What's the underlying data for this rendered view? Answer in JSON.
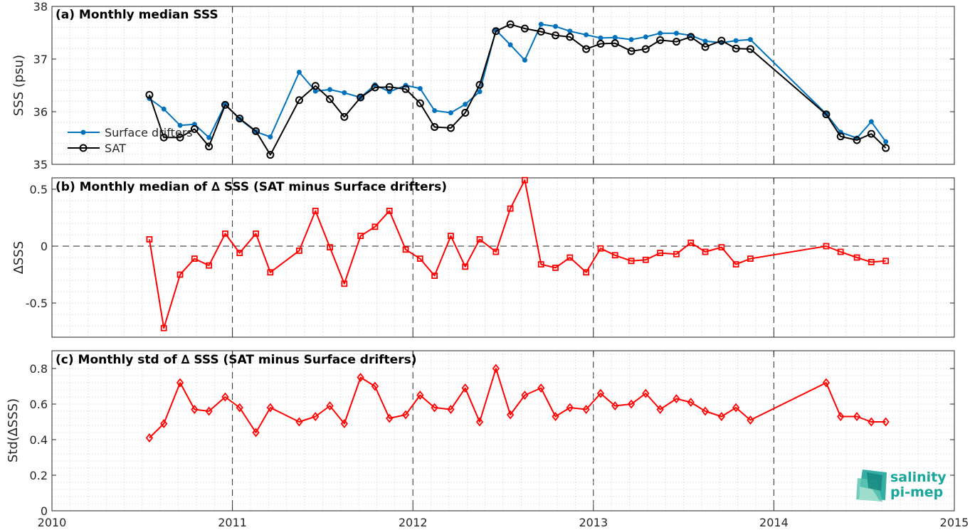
{
  "colors": {
    "drifters": "#0072bd",
    "sat": "#000000",
    "delta": "#ff0000",
    "logo": "#18a79a"
  },
  "logo": {
    "line1": "salinity",
    "line2": "pi-mep"
  },
  "chart_data": [
    {
      "type": "line",
      "title": "(a) Monthly median SSS",
      "ylabel": "SSS (psu)",
      "xlim": [
        2010,
        2015
      ],
      "ylim": [
        35,
        38
      ],
      "yticks": [
        35,
        36,
        37,
        38
      ],
      "ytick_labels": [
        "35",
        "36",
        "37",
        "38"
      ],
      "grid": true,
      "legend_position": "left",
      "series": [
        {
          "name": "Surface drifters",
          "marker": "dot",
          "color": "#0072bd",
          "x": [
            2010.54,
            2010.62,
            2010.71,
            2010.79,
            2010.87,
            2010.96,
            2011.04,
            2011.13,
            2011.21,
            2011.37,
            2011.46,
            2011.54,
            2011.62,
            2011.71,
            2011.79,
            2011.87,
            2011.96,
            2012.04,
            2012.12,
            2012.21,
            2012.29,
            2012.37,
            2012.46,
            2012.54,
            2012.62,
            2012.71,
            2012.79,
            2012.87,
            2012.96,
            2013.04,
            2013.12,
            2013.21,
            2013.29,
            2013.37,
            2013.46,
            2013.54,
            2013.62,
            2013.71,
            2013.79,
            2013.87,
            2014.29,
            2014.37,
            2014.46,
            2014.54,
            2014.62
          ],
          "y": [
            36.25,
            36.05,
            35.74,
            35.76,
            35.51,
            36.14,
            35.86,
            35.62,
            35.52,
            36.75,
            36.39,
            36.42,
            36.36,
            36.27,
            36.51,
            36.38,
            36.5,
            36.44,
            36.02,
            35.98,
            36.14,
            36.38,
            37.55,
            37.27,
            36.98,
            37.66,
            37.62,
            37.53,
            37.46,
            37.4,
            37.41,
            37.37,
            37.42,
            37.49,
            37.49,
            37.45,
            37.34,
            37.31,
            37.35,
            37.37,
            35.96,
            35.61,
            35.5,
            35.81,
            35.43
          ]
        },
        {
          "name": "SAT",
          "marker": "circle",
          "color": "#000000",
          "x": [
            2010.54,
            2010.62,
            2010.71,
            2010.79,
            2010.87,
            2010.96,
            2011.04,
            2011.13,
            2011.21,
            2011.37,
            2011.46,
            2011.54,
            2011.62,
            2011.71,
            2011.79,
            2011.87,
            2011.96,
            2012.04,
            2012.12,
            2012.21,
            2012.29,
            2012.37,
            2012.46,
            2012.54,
            2012.62,
            2012.71,
            2012.79,
            2012.87,
            2012.96,
            2013.04,
            2013.12,
            2013.21,
            2013.29,
            2013.37,
            2013.46,
            2013.54,
            2013.62,
            2013.71,
            2013.79,
            2013.87,
            2014.29,
            2014.37,
            2014.46,
            2014.54,
            2014.62
          ],
          "y": [
            36.32,
            35.51,
            35.51,
            35.67,
            35.34,
            36.13,
            35.87,
            35.63,
            35.18,
            36.22,
            36.49,
            36.24,
            35.9,
            36.27,
            36.46,
            36.47,
            36.43,
            36.16,
            35.71,
            35.69,
            35.98,
            36.51,
            37.53,
            37.66,
            37.58,
            37.52,
            37.45,
            37.42,
            37.19,
            37.29,
            37.3,
            37.15,
            37.19,
            37.36,
            37.33,
            37.42,
            37.23,
            37.35,
            37.2,
            37.19,
            35.95,
            35.53,
            35.46,
            35.58,
            35.31
          ]
        }
      ]
    },
    {
      "type": "line",
      "title": "(b) Monthly median of ∆ SSS (SAT minus Surface drifters)",
      "ylabel": "∆SSS",
      "xlim": [
        2010,
        2015
      ],
      "ylim": [
        -0.8,
        0.6
      ],
      "yticks": [
        -0.5,
        0,
        0.5
      ],
      "ytick_labels": [
        "-0.5",
        "0",
        "0.5"
      ],
      "grid": true,
      "reference_line": 0,
      "series": [
        {
          "marker": "square",
          "color": "#ff0000",
          "x": [
            2010.54,
            2010.62,
            2010.71,
            2010.79,
            2010.87,
            2010.96,
            2011.04,
            2011.13,
            2011.21,
            2011.37,
            2011.46,
            2011.54,
            2011.62,
            2011.71,
            2011.79,
            2011.87,
            2011.96,
            2012.04,
            2012.12,
            2012.21,
            2012.29,
            2012.37,
            2012.46,
            2012.54,
            2012.62,
            2012.71,
            2012.79,
            2012.87,
            2012.96,
            2013.04,
            2013.12,
            2013.21,
            2013.29,
            2013.37,
            2013.46,
            2013.54,
            2013.62,
            2013.71,
            2013.79,
            2013.87,
            2014.29,
            2014.37,
            2014.46,
            2014.54,
            2014.62
          ],
          "y": [
            0.06,
            -0.72,
            -0.25,
            -0.11,
            -0.17,
            0.11,
            -0.06,
            0.11,
            -0.23,
            -0.04,
            0.31,
            -0.01,
            -0.33,
            0.09,
            0.17,
            0.31,
            -0.03,
            -0.11,
            -0.26,
            0.09,
            -0.18,
            0.06,
            -0.05,
            0.33,
            0.58,
            -0.16,
            -0.19,
            -0.1,
            -0.23,
            -0.02,
            -0.08,
            -0.13,
            -0.12,
            -0.06,
            -0.07,
            0.03,
            -0.05,
            -0.01,
            -0.16,
            -0.11,
            0.0,
            -0.05,
            -0.1,
            -0.14,
            -0.13
          ]
        }
      ]
    },
    {
      "type": "line",
      "title": "(c) Monthly std of ∆ SSS (SAT minus Surface drifters)",
      "ylabel": "Std(∆SSS)",
      "xlim": [
        2010,
        2015
      ],
      "ylim": [
        0,
        0.9
      ],
      "yticks": [
        0,
        0.2,
        0.4,
        0.6,
        0.8
      ],
      "ytick_labels": [
        "0",
        "0.2",
        "0.4",
        "0.6",
        "0.8"
      ],
      "xticks": [
        2010,
        2011,
        2012,
        2013,
        2014,
        2015
      ],
      "xtick_labels": [
        "2010",
        "2011",
        "2012",
        "2013",
        "2014",
        "2015"
      ],
      "grid": true,
      "series": [
        {
          "marker": "diamond",
          "color": "#ff0000",
          "x": [
            2010.54,
            2010.62,
            2010.71,
            2010.79,
            2010.87,
            2010.96,
            2011.04,
            2011.13,
            2011.21,
            2011.37,
            2011.46,
            2011.54,
            2011.62,
            2011.71,
            2011.79,
            2011.87,
            2011.96,
            2012.04,
            2012.12,
            2012.21,
            2012.29,
            2012.37,
            2012.46,
            2012.54,
            2012.62,
            2012.71,
            2012.79,
            2012.87,
            2012.96,
            2013.04,
            2013.12,
            2013.21,
            2013.29,
            2013.37,
            2013.46,
            2013.54,
            2013.62,
            2013.71,
            2013.79,
            2013.87,
            2014.29,
            2014.37,
            2014.46,
            2014.54,
            2014.62
          ],
          "y": [
            0.41,
            0.49,
            0.72,
            0.57,
            0.56,
            0.64,
            0.58,
            0.44,
            0.58,
            0.5,
            0.53,
            0.59,
            0.49,
            0.75,
            0.7,
            0.52,
            0.54,
            0.65,
            0.58,
            0.57,
            0.69,
            0.5,
            0.8,
            0.54,
            0.65,
            0.69,
            0.53,
            0.58,
            0.57,
            0.66,
            0.59,
            0.6,
            0.66,
            0.57,
            0.63,
            0.61,
            0.56,
            0.53,
            0.58,
            0.51,
            0.72,
            0.53,
            0.53,
            0.5,
            0.5
          ]
        }
      ]
    }
  ]
}
